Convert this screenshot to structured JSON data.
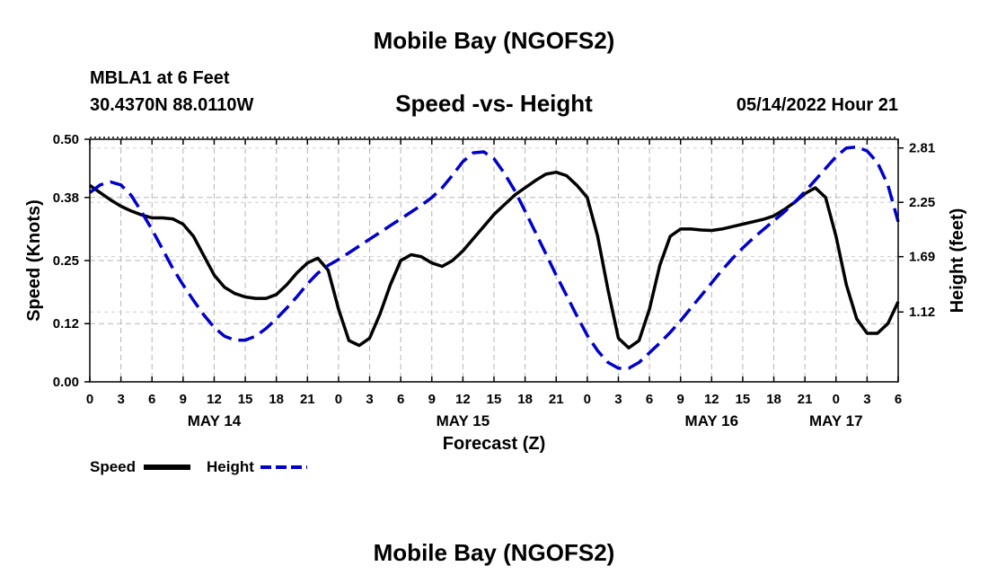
{
  "header": {
    "title": "Mobile Bay (NGOFS2)",
    "station": "MBLA1 at 6 Feet",
    "coords": "30.4370N  88.0110W",
    "subtitle": "Speed -vs- Height",
    "forecast_time": "05/14/2022 Hour 21"
  },
  "footer": {
    "title": "Mobile Bay (NGOFS2)"
  },
  "chart_data": {
    "type": "line",
    "xlabel": "Forecast (Z)",
    "ylabel_left": "Speed (Knots)",
    "ylabel_right": "Height (feet)",
    "x_range_hours": [
      0,
      78
    ],
    "hour_tick_labels": [
      "0",
      "3",
      "6",
      "9",
      "12",
      "15",
      "18",
      "21",
      "0",
      "3",
      "6",
      "9",
      "12",
      "15",
      "18",
      "21",
      "0",
      "3",
      "6",
      "9",
      "12",
      "15",
      "18",
      "21",
      "0",
      "3",
      "6"
    ],
    "day_labels": [
      {
        "label": "MAY 14",
        "hour": 12
      },
      {
        "label": "MAY 15",
        "hour": 36
      },
      {
        "label": "MAY 16",
        "hour": 60
      },
      {
        "label": "MAY 17",
        "hour": 72
      }
    ],
    "ylim_left": [
      0,
      0.5
    ],
    "yticks_left": [
      "0.00",
      "0.12",
      "0.25",
      "0.38",
      "0.50"
    ],
    "ylim_right": [
      0.4,
      2.9
    ],
    "yticks_right": [
      "1.12",
      "1.69",
      "2.25",
      "2.81"
    ],
    "grid": true,
    "legend_position": "bottom-left",
    "series": [
      {
        "name": "Speed",
        "color": "#000000",
        "style": "solid",
        "axis": "left",
        "x": [
          0,
          1,
          2,
          3,
          4,
          5,
          6,
          7,
          8,
          9,
          10,
          11,
          12,
          13,
          14,
          15,
          16,
          17,
          18,
          19,
          20,
          21,
          22,
          23,
          24,
          25,
          26,
          27,
          28,
          29,
          30,
          31,
          32,
          33,
          34,
          35,
          36,
          37,
          38,
          39,
          40,
          41,
          42,
          43,
          44,
          45,
          46,
          47,
          48,
          49,
          50,
          51,
          52,
          53,
          54,
          55,
          56,
          57,
          58,
          59,
          60,
          61,
          62,
          63,
          64,
          65,
          66,
          67,
          68,
          69,
          70,
          71,
          72,
          73,
          74,
          75,
          76,
          77,
          78
        ],
        "values": [
          0.405,
          0.39,
          0.375,
          0.362,
          0.352,
          0.344,
          0.338,
          0.338,
          0.336,
          0.325,
          0.3,
          0.26,
          0.22,
          0.195,
          0.182,
          0.175,
          0.172,
          0.172,
          0.18,
          0.2,
          0.225,
          0.245,
          0.255,
          0.23,
          0.15,
          0.085,
          0.075,
          0.09,
          0.14,
          0.2,
          0.25,
          0.262,
          0.258,
          0.245,
          0.238,
          0.25,
          0.27,
          0.295,
          0.32,
          0.345,
          0.365,
          0.385,
          0.4,
          0.415,
          0.428,
          0.432,
          0.425,
          0.405,
          0.38,
          0.3,
          0.19,
          0.09,
          0.07,
          0.085,
          0.15,
          0.24,
          0.3,
          0.315,
          0.315,
          0.313,
          0.312,
          0.315,
          0.32,
          0.325,
          0.33,
          0.335,
          0.342,
          0.355,
          0.37,
          0.388,
          0.4,
          0.38,
          0.3,
          0.2,
          0.13,
          0.1,
          0.1,
          0.12,
          0.165
        ]
      },
      {
        "name": "Height",
        "color": "#0000cc",
        "style": "dashed",
        "axis": "right",
        "x": [
          0,
          1,
          2,
          3,
          4,
          5,
          6,
          7,
          8,
          9,
          10,
          11,
          12,
          13,
          14,
          15,
          16,
          17,
          18,
          19,
          20,
          21,
          22,
          23,
          24,
          25,
          26,
          27,
          28,
          29,
          30,
          31,
          32,
          33,
          34,
          35,
          36,
          37,
          38,
          39,
          40,
          41,
          42,
          43,
          44,
          45,
          46,
          47,
          48,
          49,
          50,
          51,
          52,
          53,
          54,
          55,
          56,
          57,
          58,
          59,
          60,
          61,
          62,
          63,
          64,
          65,
          66,
          67,
          68,
          69,
          70,
          71,
          72,
          73,
          74,
          75,
          76,
          77,
          78
        ],
        "values": [
          2.35,
          2.43,
          2.46,
          2.43,
          2.32,
          2.15,
          1.97,
          1.77,
          1.57,
          1.4,
          1.24,
          1.09,
          0.96,
          0.87,
          0.83,
          0.83,
          0.87,
          0.95,
          1.05,
          1.16,
          1.28,
          1.41,
          1.52,
          1.6,
          1.66,
          1.73,
          1.8,
          1.87,
          1.94,
          2.01,
          2.08,
          2.15,
          2.22,
          2.3,
          2.4,
          2.53,
          2.67,
          2.76,
          2.77,
          2.7,
          2.55,
          2.37,
          2.16,
          1.94,
          1.72,
          1.5,
          1.29,
          1.08,
          0.88,
          0.72,
          0.6,
          0.54,
          0.54,
          0.6,
          0.7,
          0.8,
          0.91,
          1.03,
          1.16,
          1.29,
          1.42,
          1.55,
          1.67,
          1.78,
          1.88,
          1.97,
          2.06,
          2.15,
          2.25,
          2.36,
          2.48,
          2.6,
          2.72,
          2.81,
          2.82,
          2.78,
          2.66,
          2.43,
          2.05
        ]
      }
    ]
  }
}
